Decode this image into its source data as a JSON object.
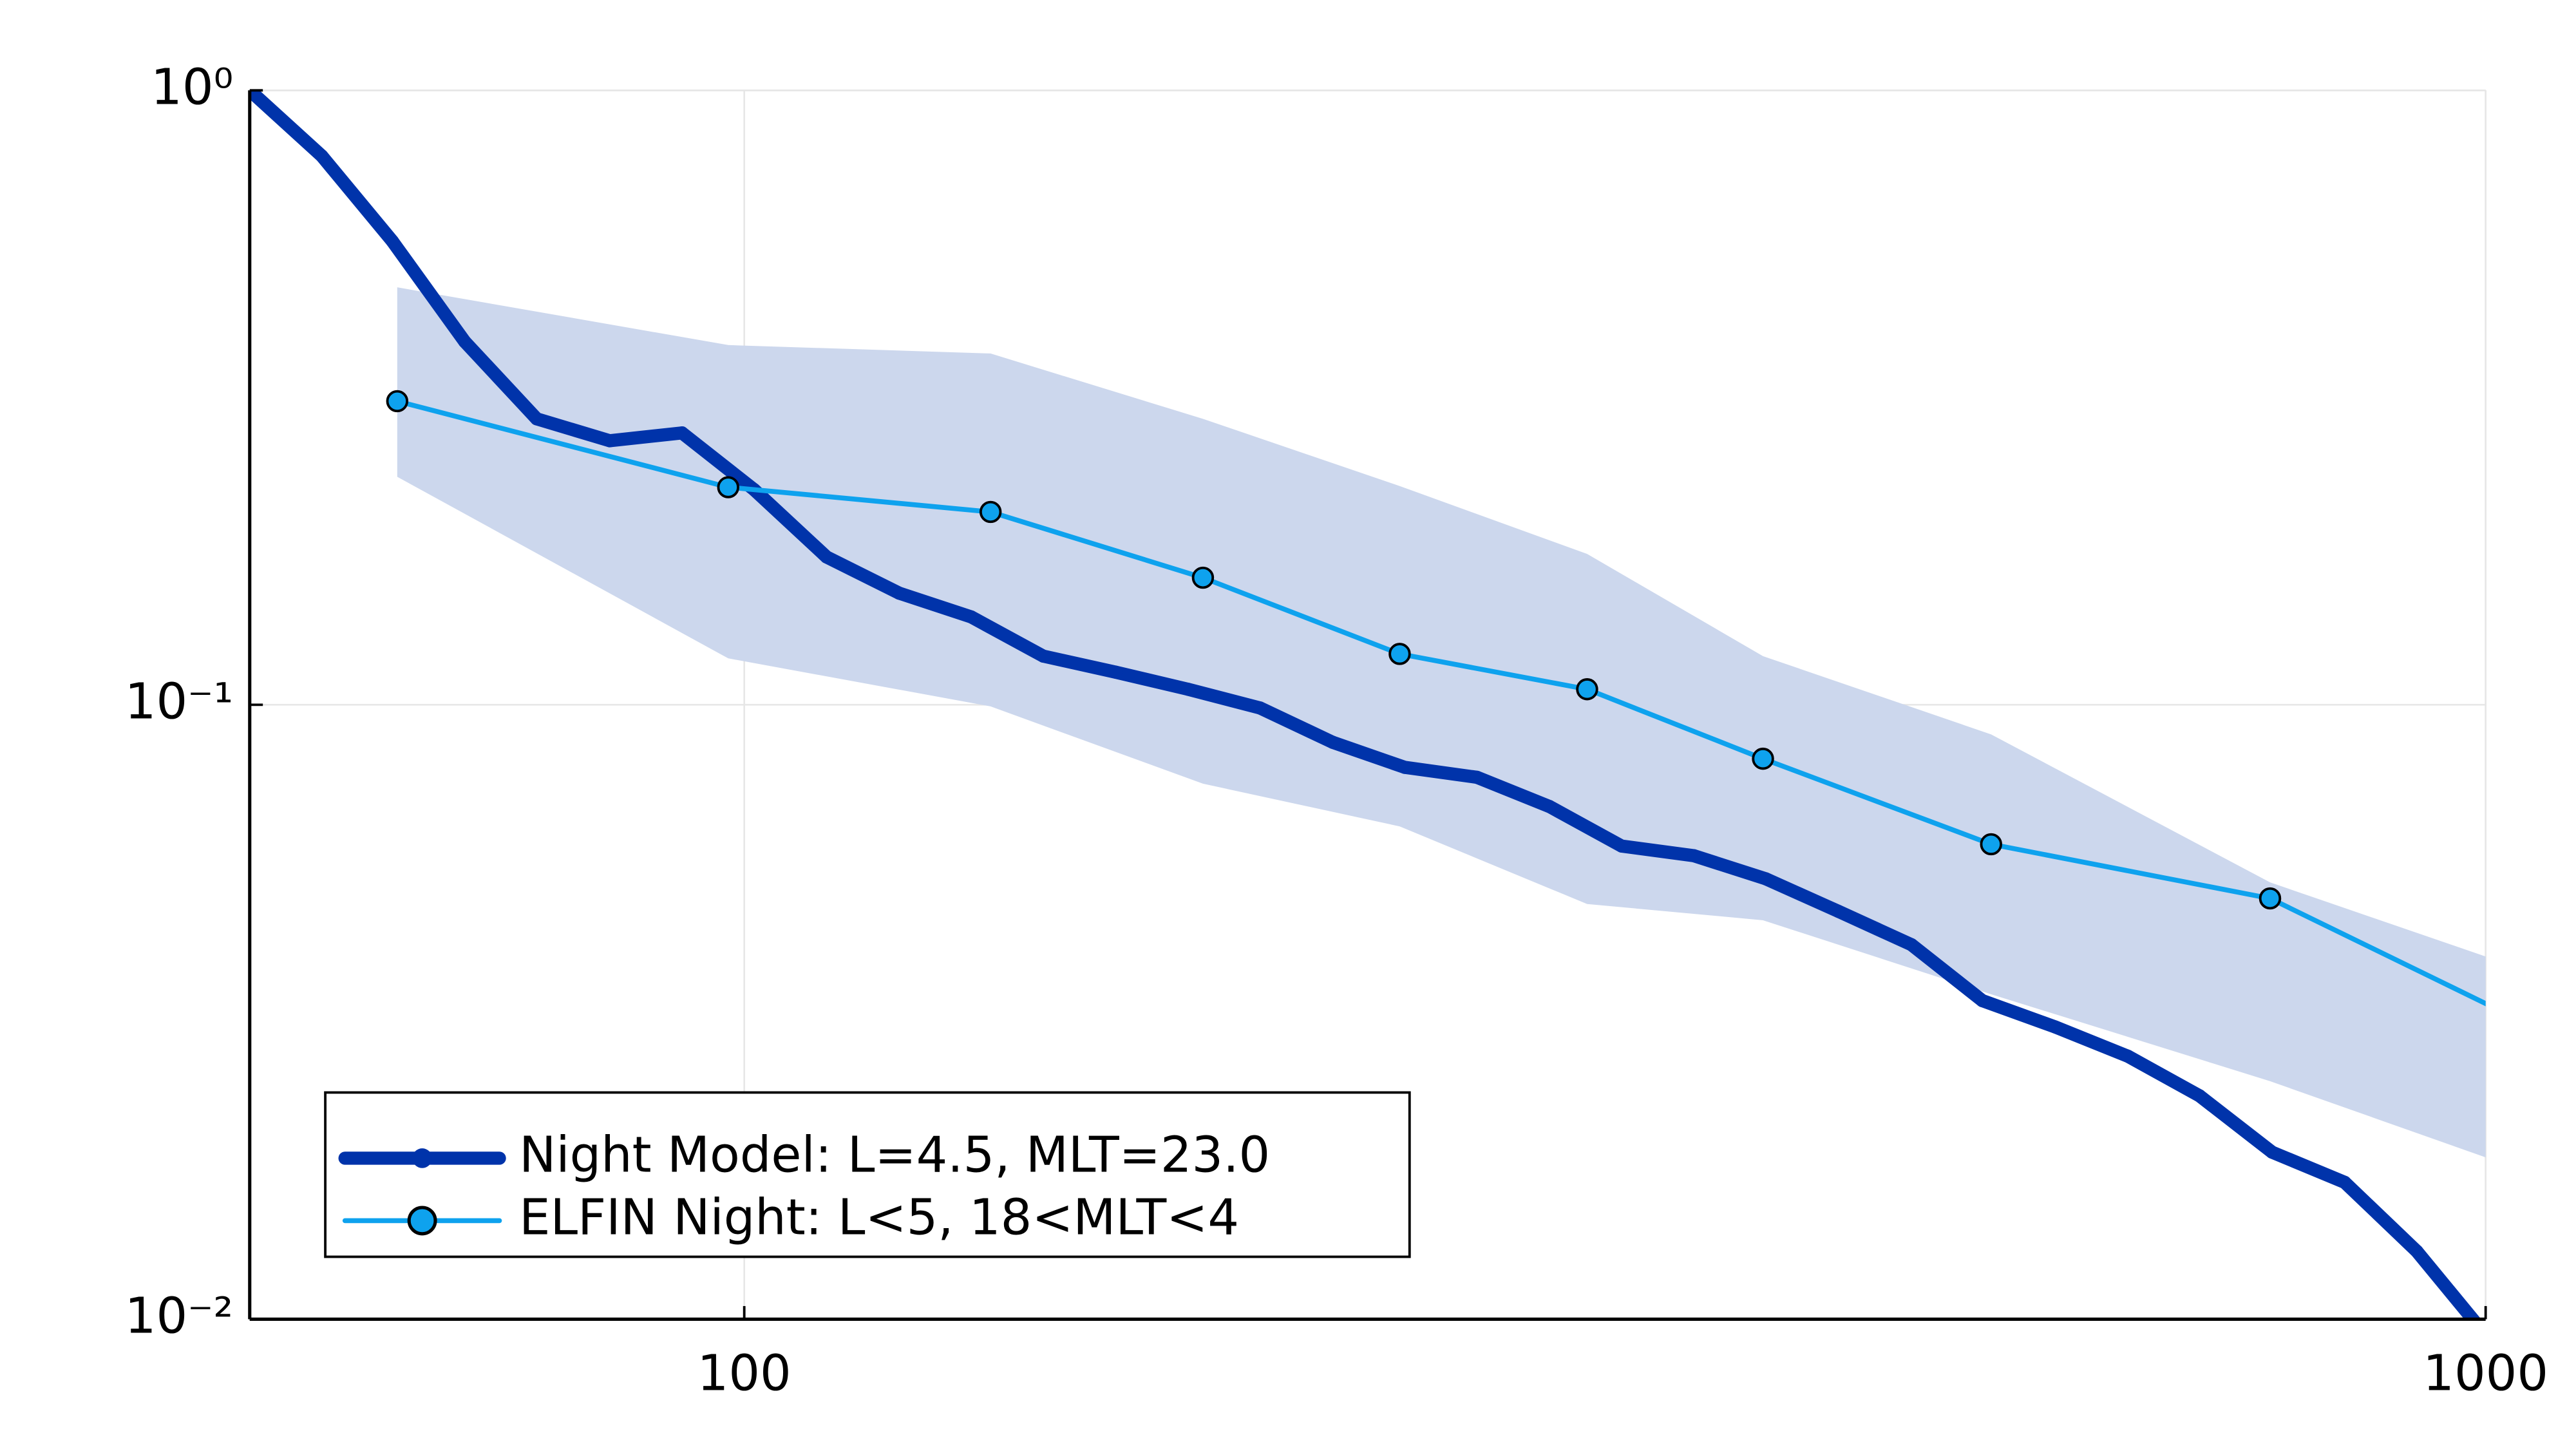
{
  "chart_data": {
    "type": "line",
    "xscale": "log",
    "yscale": "log",
    "grid": true,
    "legend": "bottom-left",
    "xlim": [
      52,
      1000
    ],
    "ylim": [
      0.01,
      1
    ],
    "xticks": [
      100,
      1000
    ],
    "yticks": [
      {
        "value": 1,
        "label": "10⁰"
      },
      {
        "value": 0.1,
        "label": "10⁻¹"
      },
      {
        "value": 0.01,
        "label": "10⁻²"
      }
    ],
    "series": [
      {
        "name": "Night Model: L=4.5, MLT=23.0",
        "color": "#0033aa",
        "x": [
          52.0,
          57.2,
          62.8,
          69.1,
          76.0,
          83.7,
          92.1,
          101.3,
          111.5,
          122.7,
          135.0,
          148.5,
          163.4,
          179.8,
          197.8,
          217.7,
          239.5,
          263.5,
          290,
          319,
          351,
          386,
          425,
          468,
          514,
          566,
          623,
          685,
          754,
          830,
          913,
          1004
        ],
        "values": [
          1.0,
          0.782,
          0.568,
          0.39,
          0.292,
          0.269,
          0.277,
          0.224,
          0.174,
          0.152,
          0.139,
          0.12,
          0.113,
          0.106,
          0.0988,
          0.0869,
          0.0791,
          0.0762,
          0.0683,
          0.0589,
          0.0568,
          0.0521,
          0.0461,
          0.0407,
          0.033,
          0.0299,
          0.0268,
          0.0231,
          0.0187,
          0.0167,
          0.0129,
          0.0093
        ]
      },
      {
        "name": "ELFIN Night: L<5, 18<MLT<4",
        "color": "#0ea2ee",
        "band_color": "#ccd7ed",
        "x": [
          63.2,
          97.9,
          138.5,
          183.4,
          237.9,
          304.8,
          384.6,
          520,
          752,
          1132
        ],
        "values": [
          0.312,
          0.226,
          0.206,
          0.161,
          0.121,
          0.106,
          0.0817,
          0.0593,
          0.0484,
          0.0275
        ],
        "upper": [
          0.478,
          0.385,
          0.373,
          0.292,
          0.227,
          0.176,
          0.12,
          0.0895,
          0.0514,
          0.0345
        ],
        "lower": [
          0.235,
          0.119,
          0.0994,
          0.0744,
          0.0634,
          0.0474,
          0.0446,
          0.0338,
          0.0244,
          0.0162
        ]
      }
    ]
  }
}
